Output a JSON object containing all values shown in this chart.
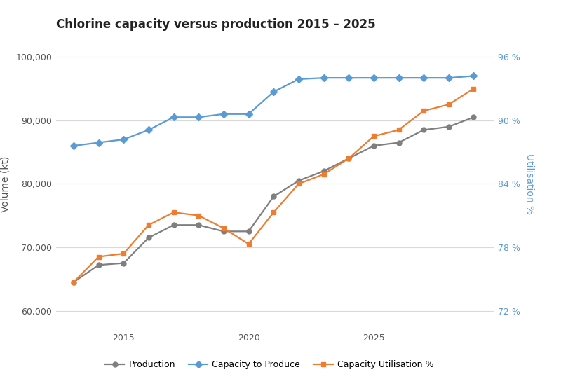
{
  "title": "Chlorine capacity versus production 2015 – 2025",
  "years": [
    2013,
    2014,
    2015,
    2016,
    2017,
    2018,
    2019,
    2020,
    2021,
    2022,
    2023,
    2024,
    2025,
    2026,
    2027,
    2028,
    2029
  ],
  "production": [
    64500,
    67200,
    67500,
    71500,
    73500,
    73500,
    72500,
    72500,
    78000,
    80500,
    82000,
    84000,
    86000,
    86500,
    88500,
    89000,
    90500
  ],
  "capacity": [
    86000,
    86500,
    87000,
    88500,
    90500,
    90500,
    91000,
    91000,
    94500,
    96500,
    96700,
    96700,
    96700,
    96700,
    96700,
    96700,
    97000
  ],
  "utilisation_pct": [
    64500,
    68500,
    69000,
    73500,
    75500,
    75000,
    73000,
    70500,
    75500,
    80000,
    81500,
    84000,
    87500,
    88500,
    91500,
    92500,
    95000
  ],
  "ylabel_left": "Volume (kt)",
  "ylabel_right": "Utilisation %",
  "yticks_left": [
    60000,
    70000,
    80000,
    90000,
    100000
  ],
  "yticks_left_labels": [
    "60,000",
    "70,000",
    "80,000",
    "90,000",
    "100,000"
  ],
  "yticks_right_pct": [
    "72 %",
    "78 %",
    "84 %",
    "90 %",
    "96 %"
  ],
  "yticks_right_vals": [
    60000,
    70000,
    80000,
    90000,
    100000
  ],
  "xticks": [
    2015,
    2020,
    2025
  ],
  "ylim": [
    57000,
    103000
  ],
  "xlim": [
    2012.3,
    2029.8
  ],
  "production_color": "#7f7f7f",
  "capacity_color": "#5b9bd5",
  "utilisation_color": "#ed7d31",
  "legend_labels": [
    "Production",
    "Capacity to Produce",
    "Capacity Utilisation %"
  ],
  "background_color": "#ffffff",
  "grid_color": "#d9d9d9",
  "title_fontsize": 12,
  "axis_fontsize": 9,
  "legend_fontsize": 9
}
